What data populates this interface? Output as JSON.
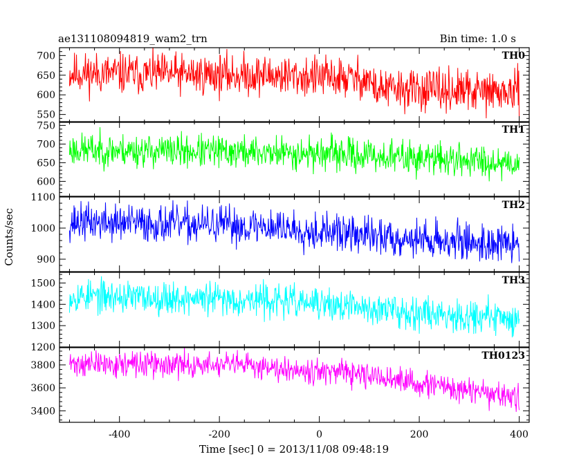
{
  "chart_data": {
    "type": "line",
    "title_left": "ae131108094819_wam2_trn",
    "title_right": "Bin time: 1.0 s",
    "xlabel": "Time [sec] 0 = 2013/11/08 09:48:19",
    "ylabel": "Counts/sec",
    "xlim": [
      -520,
      420
    ],
    "xticks": [
      -400,
      -200,
      0,
      200,
      400
    ],
    "x_start": -500,
    "x_end": 400,
    "panels": [
      {
        "name": "TH0",
        "color": "#ff0000",
        "ylim": [
          530,
          720
        ],
        "yticks": [
          550,
          600,
          650,
          700
        ],
        "trend": [
          [
            -500,
            655
          ],
          [
            -100,
            650
          ],
          [
            100,
            640
          ],
          [
            110,
            615
          ],
          [
            400,
            605
          ]
        ],
        "noise": 26,
        "seed": 11
      },
      {
        "name": "TH1",
        "color": "#00ff00",
        "ylim": [
          560,
          760
        ],
        "yticks": [
          600,
          650,
          700,
          750
        ],
        "trend": [
          [
            -500,
            685
          ],
          [
            0,
            675
          ],
          [
            400,
            650
          ]
        ],
        "noise": 22,
        "seed": 23
      },
      {
        "name": "TH2",
        "color": "#0000ff",
        "ylim": [
          860,
          1100
        ],
        "yticks": [
          900,
          1000,
          1100
        ],
        "trend": [
          [
            -500,
            1020
          ],
          [
            -100,
            1005
          ],
          [
            100,
            975
          ],
          [
            400,
            945
          ]
        ],
        "noise": 30,
        "seed": 37
      },
      {
        "name": "TH3",
        "color": "#00ffff",
        "ylim": [
          1200,
          1550
        ],
        "yticks": [
          1200,
          1300,
          1400,
          1500
        ],
        "trend": [
          [
            -500,
            1440
          ],
          [
            -100,
            1420
          ],
          [
            100,
            1380
          ],
          [
            400,
            1330
          ]
        ],
        "noise": 38,
        "seed": 53
      },
      {
        "name": "TH0123",
        "color": "#ff00ff",
        "ylim": [
          3300,
          3950
        ],
        "yticks": [
          3400,
          3600,
          3800
        ],
        "trend": [
          [
            -500,
            3810
          ],
          [
            -100,
            3790
          ],
          [
            100,
            3700
          ],
          [
            400,
            3510
          ]
        ],
        "noise": 55,
        "seed": 71
      }
    ]
  }
}
